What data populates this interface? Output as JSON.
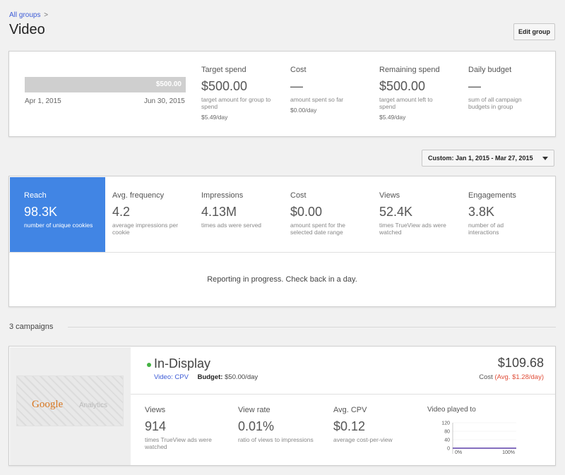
{
  "breadcrumb": {
    "link": "All groups",
    "sep": ">"
  },
  "page_title": "Video",
  "edit_button": "Edit group",
  "budget": {
    "bar_value": "$500.00",
    "bar_fill": 1.0,
    "start_date": "Apr 1, 2015",
    "end_date": "Jun 30, 2015",
    "metrics": [
      {
        "label": "Target spend",
        "value": "$500.00",
        "desc": "target amount for group to spend",
        "sub": "$5.49/day"
      },
      {
        "label": "Cost",
        "value": "—",
        "desc": "amount spent so far",
        "sub": "$0.00/day"
      },
      {
        "label": "Remaining spend",
        "value": "$500.00",
        "desc": "target amount left to spend",
        "sub": "$5.49/day"
      },
      {
        "label": "Daily budget",
        "value": "—",
        "desc": "sum of all campaign budgets in group",
        "sub": ""
      }
    ]
  },
  "date_range": "Custom: Jan 1, 2015 - Mar 27, 2015",
  "reach": {
    "metrics": [
      {
        "label": "Reach",
        "value": "98.3K",
        "desc": "number of unique cookies"
      },
      {
        "label": "Avg. frequency",
        "value": "4.2",
        "desc": "average impressions per cookie"
      },
      {
        "label": "Impressions",
        "value": "4.13M",
        "desc": "times ads were served"
      },
      {
        "label": "Cost",
        "value": "$0.00",
        "desc": "amount spent for the selected date range"
      },
      {
        "label": "Views",
        "value": "52.4K",
        "desc": "times TrueView ads were watched"
      },
      {
        "label": "Engagements",
        "value": "3.8K",
        "desc": "number of ad interactions"
      }
    ],
    "progress_message": "Reporting in progress. Check back in a day."
  },
  "campaigns_label": "3 campaigns",
  "campaign": {
    "thumb_logo": "Google",
    "thumb_logo2": "Analytics",
    "status_color": "#44b243",
    "name": "In-Display",
    "type_link": "Video: CPV",
    "budget_label": "Budget:",
    "budget_value": "$50.00/day",
    "cost": "$109.68",
    "cost_label": "Cost",
    "avg_cost": "(Avg. $1.28/day)",
    "metrics": [
      {
        "label": "Views",
        "value": "914",
        "desc": "times TrueView ads were watched"
      },
      {
        "label": "View rate",
        "value": "0.01%",
        "desc": "ratio of views to impressions"
      },
      {
        "label": "Avg. CPV",
        "value": "$0.12",
        "desc": "average cost-per-view"
      }
    ],
    "chart_title": "Video played to",
    "chart_data": {
      "type": "line",
      "x": [
        "0%",
        "100%"
      ],
      "series": [
        {
          "values": [
            0,
            0
          ]
        }
      ],
      "yticks": [
        "120",
        "80",
        "40",
        "0"
      ],
      "ylim": [
        0,
        120
      ]
    }
  },
  "colors": {
    "accent": "#4185e4",
    "link": "#3c5bd6",
    "warning": "#e04e39"
  }
}
